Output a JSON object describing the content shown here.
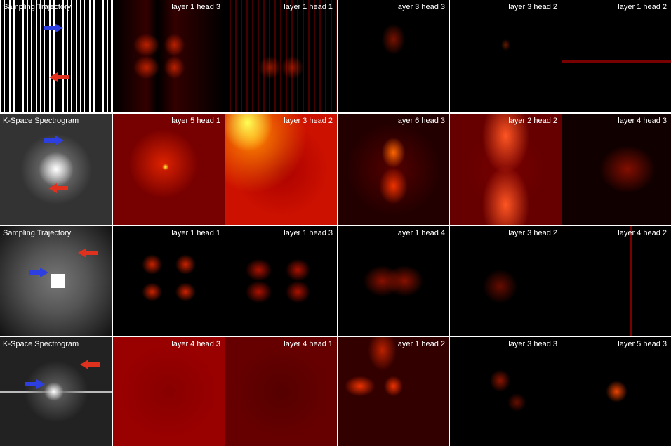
{
  "rows": [
    {
      "cells": [
        "Sampling Trajectory",
        "layer 1 head 3",
        "layer 1 head 1",
        "layer 3 head 3",
        "layer 3 head 2",
        "layer 1 head 2"
      ]
    },
    {
      "cells": [
        "K-Space Spectrogram",
        "layer 5 head 1",
        "layer 3 head 2",
        "layer 6 head 3",
        "layer 2 head 2",
        "layer 4 head 3"
      ]
    },
    {
      "cells": [
        "Sampling Trajectory",
        "layer 1 head 1",
        "layer 1 head 3",
        "layer 1 head 4",
        "layer 3 head 2",
        "layer 4 head 2"
      ]
    },
    {
      "cells": [
        "K-Space Spectrogram",
        "layer 4 head 3",
        "layer 4 head 1",
        "layer 1 head 2",
        "layer 3 head 3",
        "layer 5 head 3"
      ]
    }
  ]
}
